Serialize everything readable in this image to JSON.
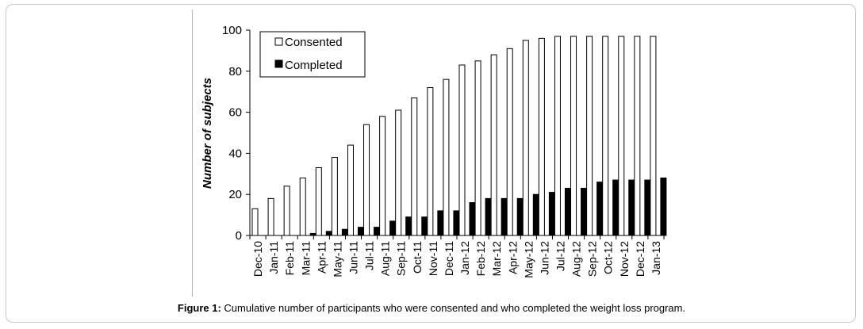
{
  "chart_data": {
    "type": "bar",
    "ylabel": "Number of subjects",
    "ylim": [
      0,
      100
    ],
    "yticks": [
      0,
      20,
      40,
      60,
      80,
      100
    ],
    "grid": false,
    "legend_position": "top-left",
    "categories": [
      "Dec-10",
      "Jan-11",
      "Feb-11",
      "Mar-11",
      "Apr-11",
      "May-11",
      "Jun-11",
      "Jul-11",
      "Aug-11",
      "Sep-11",
      "Oct-11",
      "Nov-11",
      "Dec-11",
      "Jan-12",
      "Feb-12",
      "Mar-12",
      "Apr-12",
      "May-12",
      "Jun-12",
      "Jul-12",
      "Aug-12",
      "Sep-12",
      "Oct-12",
      "Nov-12",
      "Dec-12",
      "Jan-13"
    ],
    "series": [
      {
        "name": "Consented",
        "color": "#ffffff",
        "stroke": "#000000",
        "values": [
          13,
          18,
          24,
          28,
          33,
          38,
          44,
          54,
          58,
          61,
          67,
          72,
          76,
          83,
          85,
          88,
          91,
          95,
          96,
          97,
          97,
          97,
          97,
          97,
          97,
          97
        ]
      },
      {
        "name": "Completed",
        "color": "#000000",
        "stroke": "#000000",
        "values": [
          0,
          0,
          0,
          1,
          2,
          3,
          4,
          4,
          7,
          9,
          9,
          12,
          12,
          16,
          18,
          18,
          18,
          20,
          21,
          23,
          23,
          26,
          27,
          27,
          27,
          28
        ]
      }
    ]
  },
  "caption": {
    "label": "Figure 1:",
    "text": " Cumulative number of participants who were consented and who completed the weight loss program."
  }
}
